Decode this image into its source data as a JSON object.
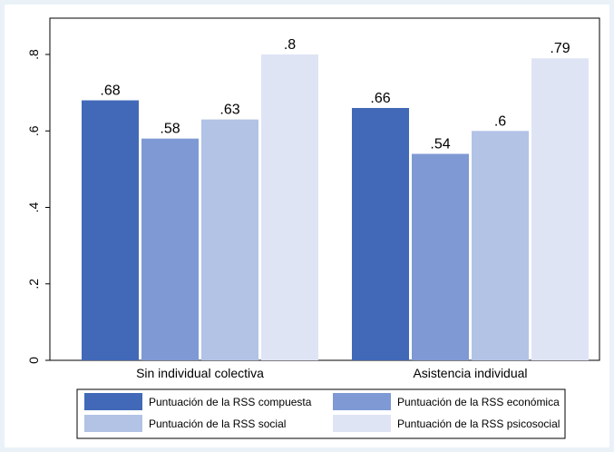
{
  "chart_data": {
    "type": "bar",
    "categories": [
      "Sin individual colectiva",
      "Asistencia individual"
    ],
    "series": [
      {
        "name": "Puntuación de la RSS compuesta",
        "values": [
          0.68,
          0.66
        ],
        "labels": [
          ".68",
          ".66"
        ],
        "color": "#4169b8"
      },
      {
        "name": "Puntuación de la RSS económica",
        "values": [
          0.58,
          0.54
        ],
        "labels": [
          ".58",
          ".54"
        ],
        "color": "#7f99d4"
      },
      {
        "name": "Puntuación de la RSS social",
        "values": [
          0.63,
          0.6
        ],
        "labels": [
          ".63",
          ".6"
        ],
        "color": "#b3c3e6"
      },
      {
        "name": "Puntuación de la RSS psicosocial",
        "values": [
          0.8,
          0.79
        ],
        "labels": [
          ".8",
          ".79"
        ],
        "color": "#dfe4f5"
      }
    ],
    "ylim": [
      0,
      0.8
    ],
    "yticks": [
      {
        "value": 0,
        "label": "0"
      },
      {
        "value": 0.2,
        "label": ".2"
      },
      {
        "value": 0.4,
        "label": ".4"
      },
      {
        "value": 0.6,
        "label": ".6"
      },
      {
        "value": 0.8,
        "label": ".8"
      }
    ],
    "title": "",
    "xlabel": "",
    "ylabel": "",
    "grid": false,
    "legend_position": "bottom"
  }
}
